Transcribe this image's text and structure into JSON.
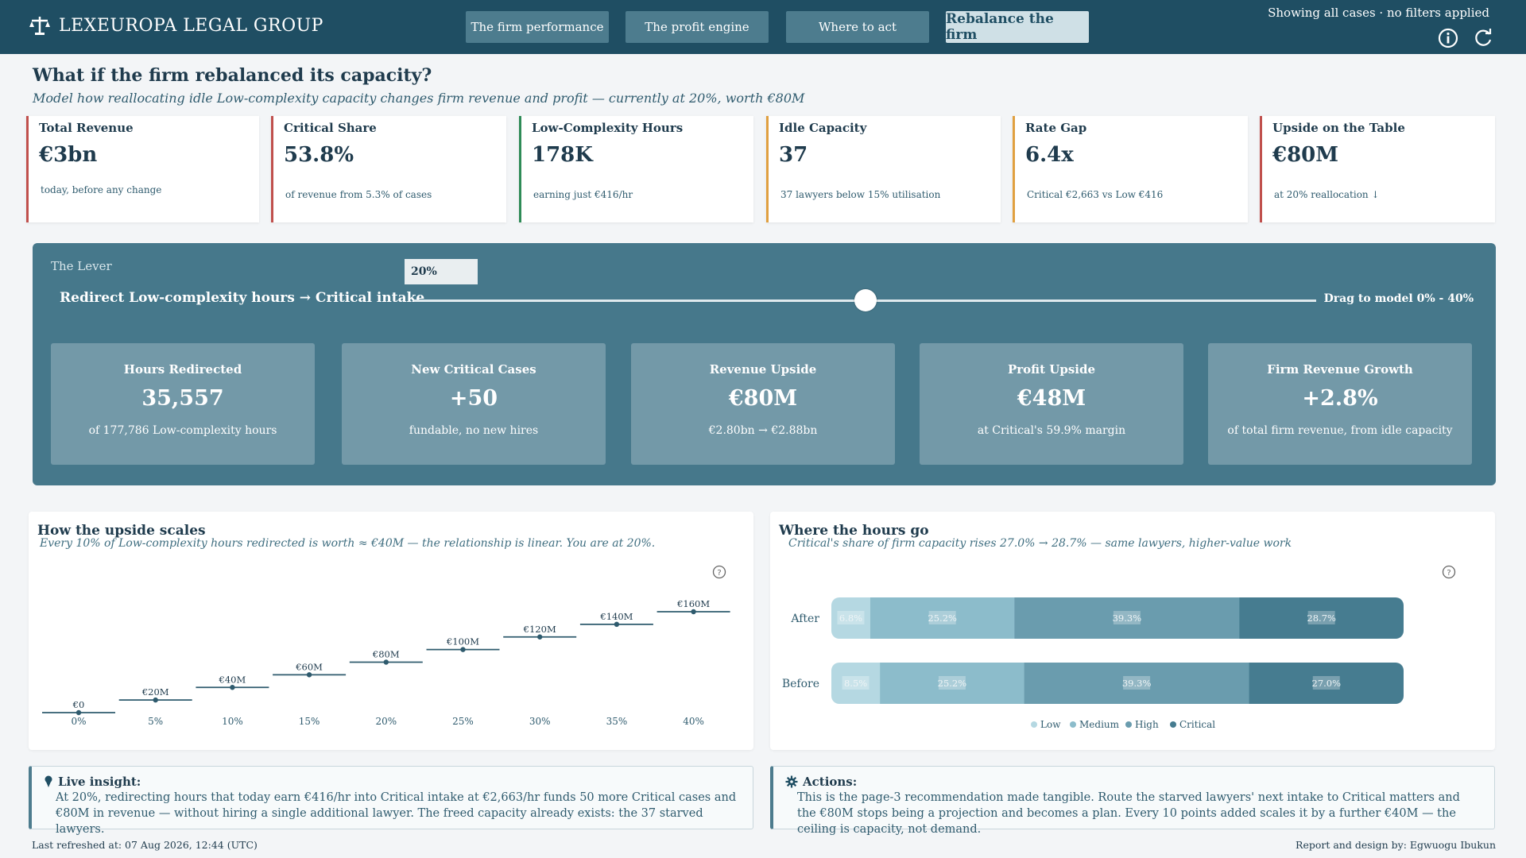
{
  "header": {
    "brand": "LEXEUROPA LEGAL GROUP",
    "tabs": [
      {
        "label": "The firm performance"
      },
      {
        "label": "The profit engine"
      },
      {
        "label": "Where to act"
      },
      {
        "label": "Rebalance the firm"
      }
    ],
    "active_tab": "Rebalance the firm",
    "filter_status": "Showing all cases · no filters applied"
  },
  "page": {
    "title": "What if the firm rebalanced its capacity?",
    "subtitle": "Model how reallocating idle Low-complexity capacity changes firm revenue and profit — currently at 20%, worth €80M"
  },
  "kpis": [
    {
      "label": "Total Revenue",
      "value": "€3bn",
      "note": "today, before any change",
      "accent": "#c0504d"
    },
    {
      "label": "Critical Share",
      "value": "53.8%",
      "note": "of revenue from 5.3% of cases",
      "accent": "#c0504d"
    },
    {
      "label": "Low-Complexity Hours",
      "value": "178K",
      "note": "earning just €416/hr",
      "accent": "#2e8b57"
    },
    {
      "label": "Idle Capacity",
      "value": "37",
      "note": "37 lawyers below 15% utilisation",
      "accent": "#e0a040"
    },
    {
      "label": "Rate Gap",
      "value": "6.4x",
      "note": "Critical €2,663 vs Low €416",
      "accent": "#e0a040"
    },
    {
      "label": "Upside on the Table",
      "value": "€80M",
      "note": "at 20% reallocation ↓",
      "accent": "#c0504d"
    }
  ],
  "lever": {
    "section_label": "The Lever",
    "description": "Redirect Low-complexity hours → Critical intake",
    "input_value": "20%",
    "slider_value_percent": 20,
    "slider_min": 0,
    "slider_max": 40,
    "hint": "Drag to model 0% - 40%",
    "cards": [
      {
        "title": "Hours Redirected",
        "value": "35,557",
        "note": "of 177,786 Low-complexity hours"
      },
      {
        "title": "New Critical Cases",
        "value": "+50",
        "note": "fundable, no new hires"
      },
      {
        "title": "Revenue Upside",
        "value": "€80M",
        "note": "€2.80bn → €2.88bn"
      },
      {
        "title": "Profit Upside",
        "value": "€48M",
        "note": "at Critical's 59.9% margin"
      },
      {
        "title": "Firm Revenue Growth",
        "value": "+2.8%",
        "note": "of total firm revenue, from idle capacity"
      }
    ]
  },
  "upside_panel": {
    "title": "How the upside scales",
    "subtitle": "Every 10% of Low-complexity hours redirected is worth ≈ €40M — the relationship is linear. You are at 20%."
  },
  "hours_panel": {
    "title": "Where the hours go",
    "subtitle": "Critical's share of firm capacity rises 27.0% → 28.7% — same lawyers, higher-value work"
  },
  "chart_data": [
    {
      "type": "scatter",
      "title": "How the upside scales",
      "categories": [
        "0%",
        "5%",
        "10%",
        "15%",
        "20%",
        "25%",
        "30%",
        "35%",
        "40%"
      ],
      "values": [
        0,
        20,
        40,
        60,
        80,
        100,
        120,
        140,
        160
      ],
      "labels": [
        "€0",
        "€20M",
        "€40M",
        "€60M",
        "€80M",
        "€100M",
        "€120M",
        "€140M",
        "€160M"
      ],
      "ylim": [
        0,
        160
      ],
      "grid": false
    },
    {
      "type": "bar",
      "orientation": "horizontal",
      "stacked": true,
      "title": "Where the hours go",
      "categories": [
        "After",
        "Before"
      ],
      "series": [
        {
          "name": "Low",
          "values": [
            6.8,
            8.5
          ],
          "labels": [
            "6.8%",
            "8.5%"
          ],
          "color": "#b5d8e2"
        },
        {
          "name": "Medium",
          "values": [
            25.2,
            25.2
          ],
          "labels": [
            "25.2%",
            "25.2%"
          ],
          "color": "#8cbccb"
        },
        {
          "name": "High",
          "values": [
            39.3,
            39.3
          ],
          "labels": [
            "39.3%",
            "39.3%"
          ],
          "color": "#6a9cae"
        },
        {
          "name": "Critical",
          "values": [
            28.7,
            27.0
          ],
          "labels": [
            "28.7%",
            "27.0%"
          ],
          "color": "#467c90"
        }
      ],
      "legend_position": "bottom",
      "xlim": [
        0,
        100
      ]
    }
  ],
  "insight": {
    "heading": "Live insight:",
    "body": "At 20%, redirecting hours that today earn €416/hr into Critical intake at €2,663/hr funds 50 more Critical cases and €80M in revenue — without hiring a single additional lawyer. The freed capacity already exists: the 37 starved lawyers."
  },
  "actions": {
    "heading": "Actions:",
    "body": "This is the page-3 recommendation made tangible. Route the starved lawyers' next intake to Critical matters and the €80M stops being a projection and becomes a plan. Every 10 points added scales it by a further €40M — the ceiling is capacity, not demand."
  },
  "footer": {
    "refreshed": "Last refreshed at: 07 Aug 2026, 12:44 (UTC)",
    "credit": "Report and design by: Egwuogu Ibukun"
  },
  "colors": {
    "header_bg": "#1f4e63",
    "lever_bg": "#46788b",
    "lever_card": "#7399a8",
    "accent_red": "#c0504d",
    "accent_green": "#2e8b57",
    "accent_amber": "#e0a040"
  }
}
